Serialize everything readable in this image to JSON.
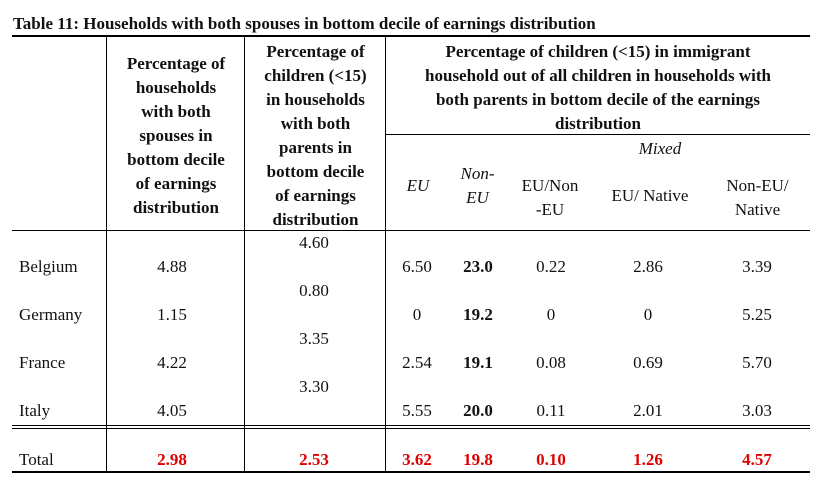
{
  "title": "Table 11: Households with both spouses in bottom decile of earnings distribution",
  "headers": {
    "col1": "Percentage of\nhouseholds\nwith both\nspouses in\nbottom decile\nof earnings\ndistribution",
    "col2": "Percentage of\nchildren (<15)\nin households\nwith both\nparents in\nbottom decile\nof earnings\ndistribution",
    "col3": "Percentage of children (<15) in immigrant\nhousehold out of all children in households with\nboth parents in bottom decile of the earnings\ndistribution",
    "mixed": "Mixed",
    "sub": [
      "EU",
      "Non-\nEU",
      "EU/Non\n-EU",
      "EU/ Native",
      "Non-EU/\nNative"
    ]
  },
  "rows": [
    {
      "label": "Belgium",
      "hh": "4.88",
      "ch": "4.60",
      "eu": "6.50",
      "noneu": "23.0",
      "eunoneu": "0.22",
      "eunative": "2.86",
      "noneunative": "3.39"
    },
    {
      "label": "Germany",
      "hh": "1.15",
      "ch": "0.80",
      "eu": "0",
      "noneu": "19.2",
      "eunoneu": "0",
      "eunative": "0",
      "noneunative": "5.25"
    },
    {
      "label": "France",
      "hh": "4.22",
      "ch": "3.35",
      "eu": "2.54",
      "noneu": "19.1",
      "eunoneu": "0.08",
      "eunative": "0.69",
      "noneunative": "5.70"
    },
    {
      "label": "Italy",
      "hh": "4.05",
      "ch": "3.30",
      "eu": "5.55",
      "noneu": "20.0",
      "eunoneu": "0.11",
      "eunative": "2.01",
      "noneunative": "3.03"
    }
  ],
  "total": {
    "label": "Total",
    "hh": "2.98",
    "ch": "2.53",
    "eu": "3.62",
    "noneu": "19.8",
    "eunoneu": "0.10",
    "eunative": "1.26",
    "noneunative": "4.57"
  }
}
